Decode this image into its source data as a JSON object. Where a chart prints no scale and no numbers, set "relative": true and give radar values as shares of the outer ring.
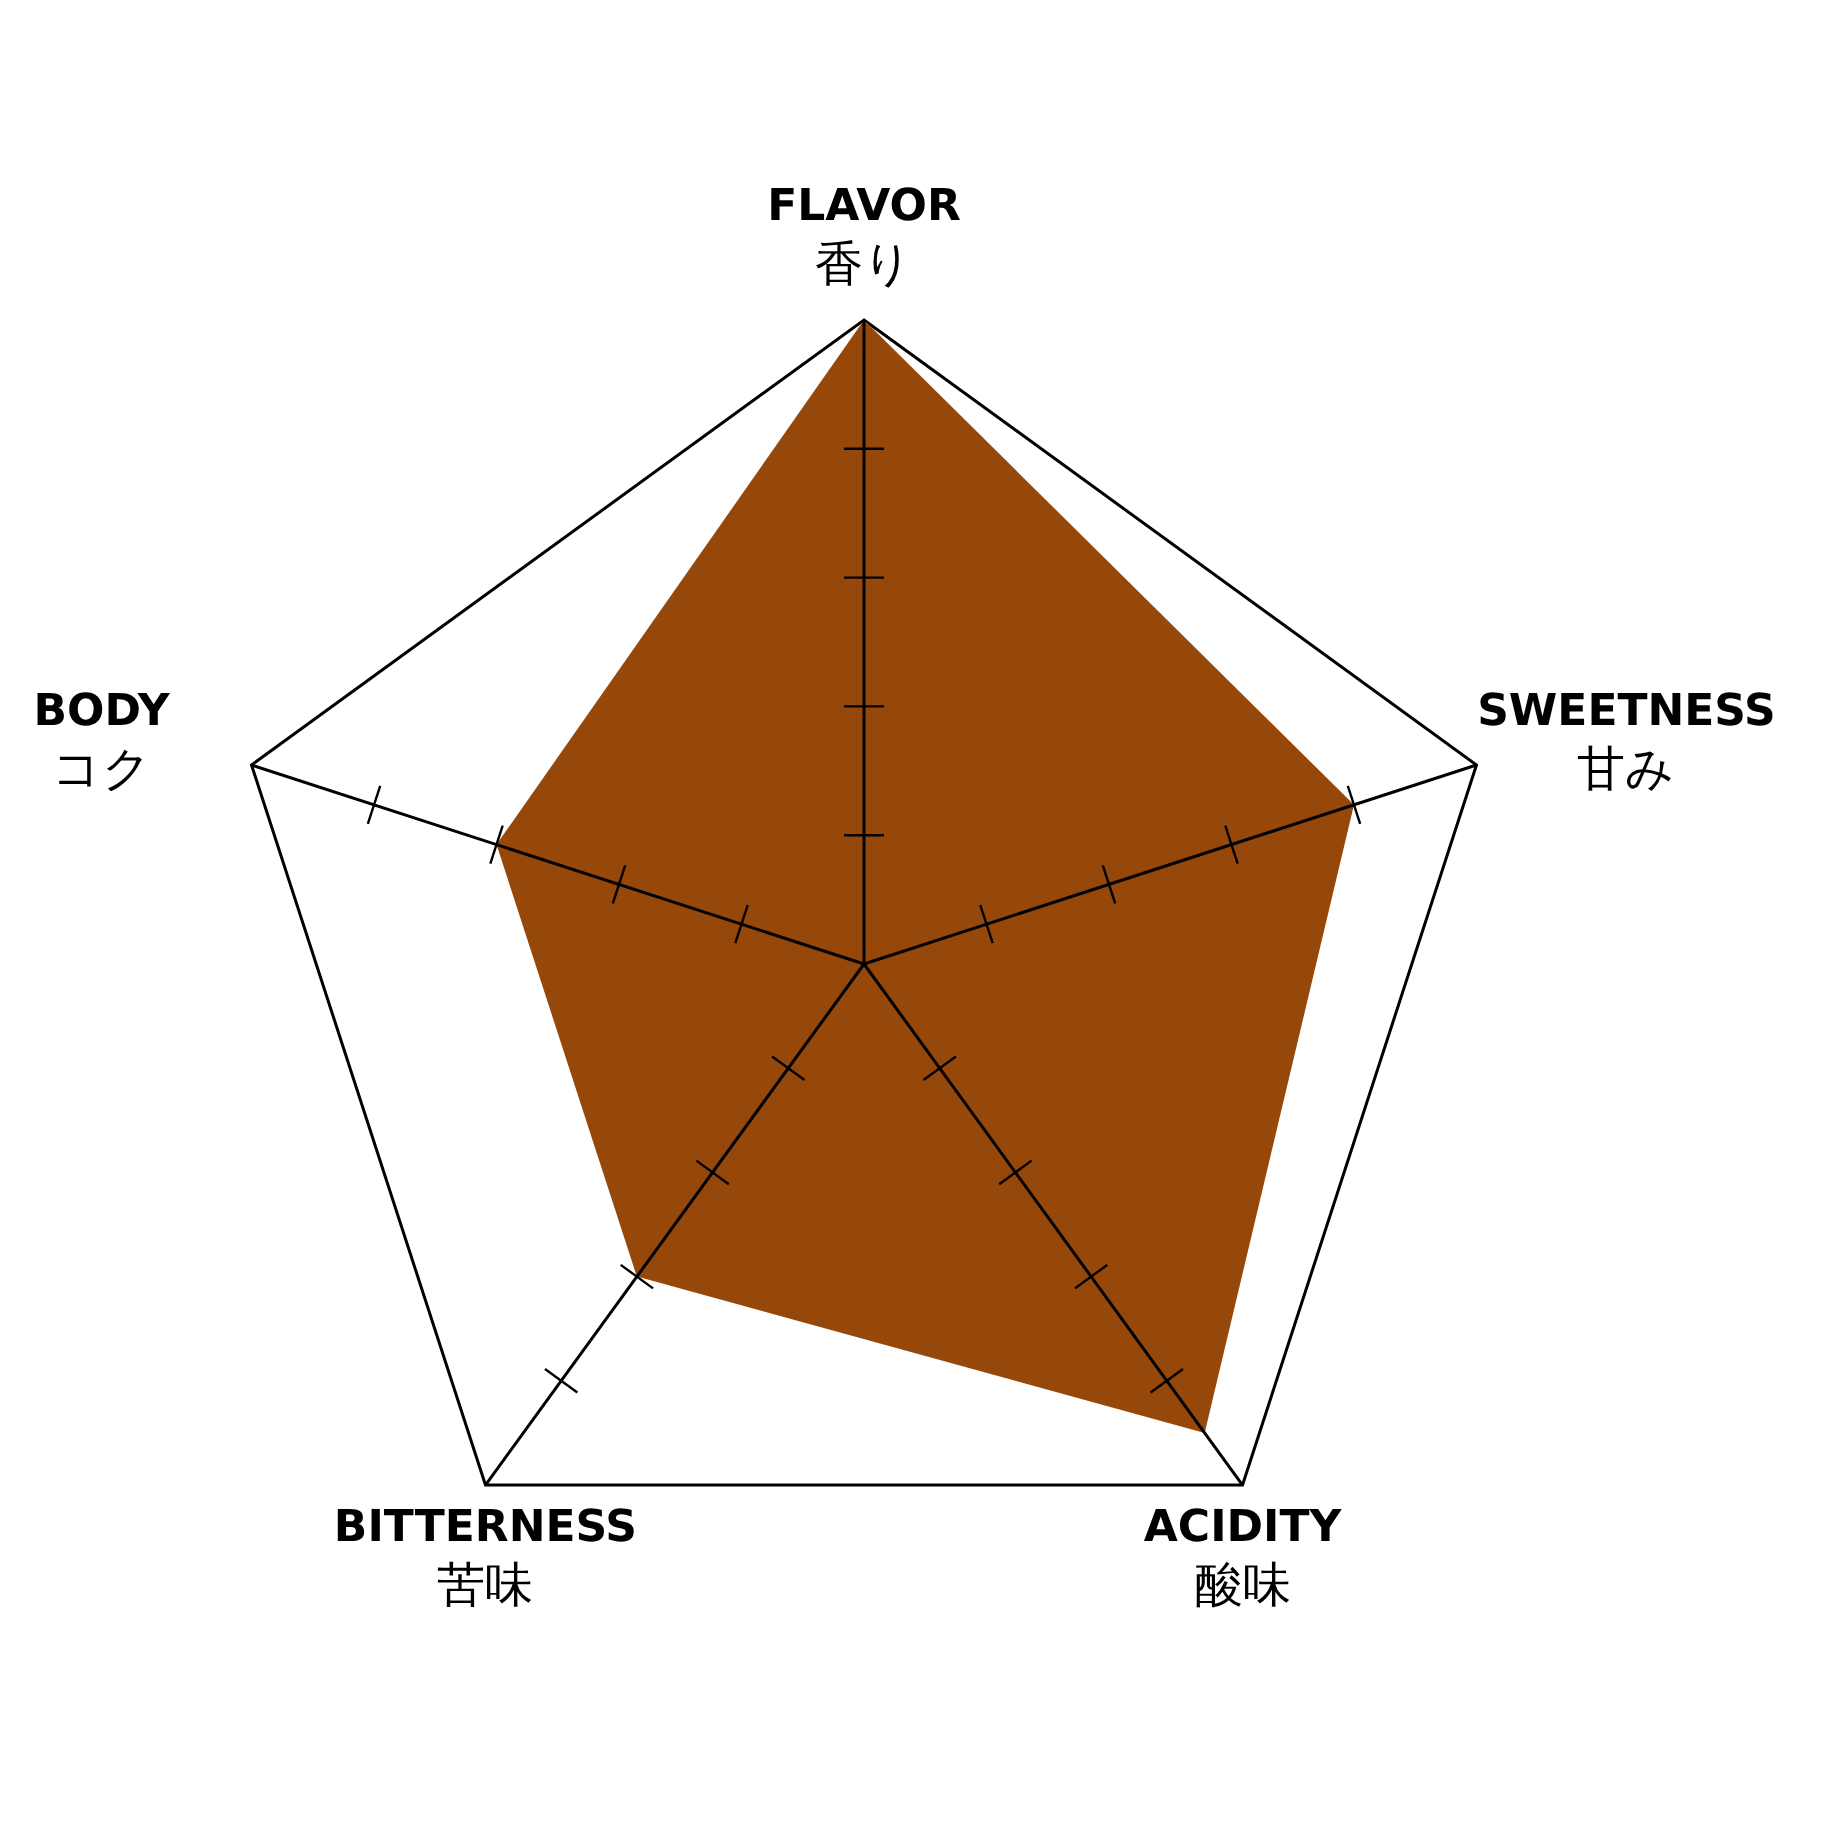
{
  "chart_data": {
    "type": "radar",
    "relative": true,
    "categories": [
      "FLAVOR\n香り",
      "SWEETNESS\n甘み",
      "ACIDITY\n酸味",
      "BITTERNESS\n苦味",
      "BODY\nコク"
    ],
    "series": [
      {
        "color": "#96470a",
        "values": [
          1,
          0.8,
          0.9,
          0.6,
          0.6
        ]
      }
    ]
  }
}
